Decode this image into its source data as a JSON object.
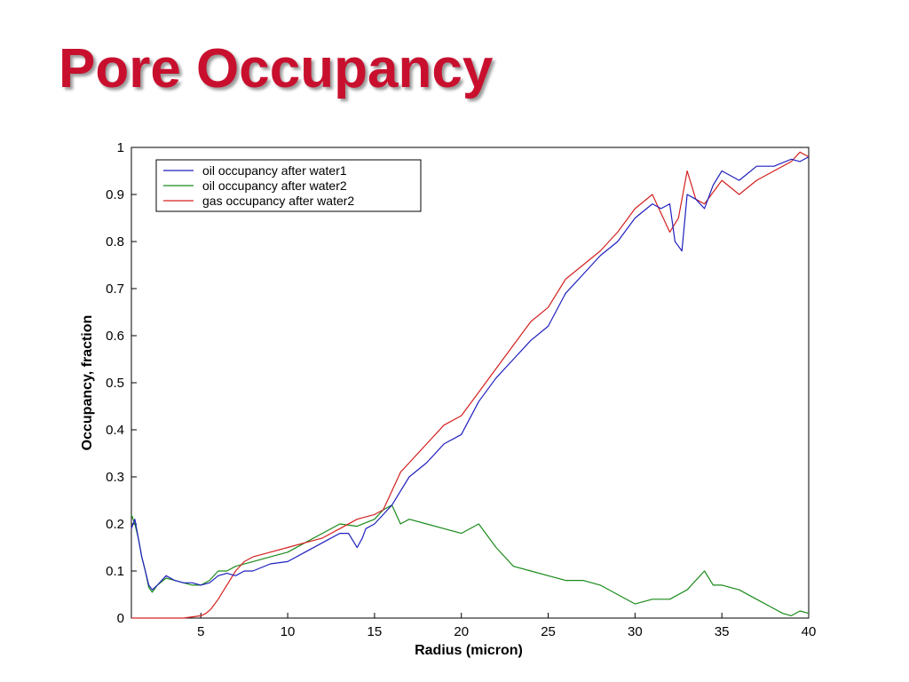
{
  "slide": {
    "title": "Pore Occupancy"
  },
  "chart_data": {
    "type": "line",
    "xlabel": "Radius (micron)",
    "ylabel": "Occupancy, fraction",
    "xlim": [
      1,
      40
    ],
    "ylim": [
      0,
      1
    ],
    "xticks": [
      5,
      10,
      15,
      20,
      25,
      30,
      35,
      40
    ],
    "yticks": [
      0,
      0.1,
      0.2,
      0.3,
      0.4,
      0.5,
      0.6,
      0.7,
      0.8,
      0.9,
      1
    ],
    "grid": false,
    "legend_position": "top-left",
    "series": [
      {
        "name": "oil occupancy after water1",
        "color": "#1f1fbf",
        "x": [
          1,
          1.2,
          1.4,
          1.6,
          1.8,
          2,
          2.2,
          2.5,
          3,
          3.5,
          4,
          4.5,
          5,
          5.5,
          6,
          6.5,
          7,
          7.5,
          8,
          9,
          10,
          11,
          12,
          13,
          13.5,
          14,
          14.3,
          14.5,
          15,
          15.5,
          16,
          16.5,
          17,
          18,
          19,
          20,
          21,
          22,
          23,
          24,
          25,
          26,
          27,
          28,
          29,
          30,
          31,
          31.5,
          32,
          32.3,
          32.7,
          33,
          33.5,
          34,
          34.5,
          35,
          36,
          37,
          38,
          39,
          39.5,
          40
        ],
        "y": [
          0.19,
          0.21,
          0.17,
          0.13,
          0.1,
          0.07,
          0.06,
          0.07,
          0.09,
          0.08,
          0.075,
          0.075,
          0.07,
          0.075,
          0.09,
          0.095,
          0.09,
          0.1,
          0.1,
          0.115,
          0.12,
          0.14,
          0.16,
          0.18,
          0.18,
          0.15,
          0.17,
          0.19,
          0.2,
          0.22,
          0.24,
          0.27,
          0.3,
          0.33,
          0.37,
          0.39,
          0.46,
          0.51,
          0.55,
          0.59,
          0.62,
          0.69,
          0.73,
          0.77,
          0.8,
          0.85,
          0.88,
          0.87,
          0.88,
          0.8,
          0.78,
          0.9,
          0.89,
          0.87,
          0.92,
          0.95,
          0.93,
          0.96,
          0.96,
          0.975,
          0.97,
          0.98
        ]
      },
      {
        "name": "oil occupancy after water2",
        "color": "#1a8a1a",
        "x": [
          1,
          1.2,
          1.4,
          1.6,
          1.8,
          2,
          2.2,
          2.5,
          3,
          3.5,
          4,
          4.5,
          5,
          5.5,
          6,
          6.5,
          7,
          8,
          9,
          10,
          11,
          12,
          13,
          14,
          15,
          15.5,
          16,
          16.5,
          17,
          18,
          19,
          20,
          21,
          22,
          23,
          24,
          25,
          26,
          27,
          28,
          29,
          30,
          31,
          32,
          33,
          34,
          34.5,
          35,
          36,
          37,
          38,
          38.5,
          39,
          39.5,
          40
        ],
        "y": [
          0.22,
          0.2,
          0.17,
          0.13,
          0.1,
          0.065,
          0.055,
          0.07,
          0.085,
          0.08,
          0.075,
          0.07,
          0.07,
          0.08,
          0.1,
          0.1,
          0.11,
          0.12,
          0.13,
          0.14,
          0.16,
          0.18,
          0.2,
          0.195,
          0.21,
          0.23,
          0.24,
          0.2,
          0.21,
          0.2,
          0.19,
          0.18,
          0.2,
          0.15,
          0.11,
          0.1,
          0.09,
          0.08,
          0.08,
          0.07,
          0.05,
          0.03,
          0.04,
          0.04,
          0.06,
          0.1,
          0.07,
          0.07,
          0.06,
          0.04,
          0.02,
          0.01,
          0.005,
          0.015,
          0.01
        ]
      },
      {
        "name": "gas occupancy after water2",
        "color": "#d42020",
        "x": [
          1,
          2,
          3,
          4,
          5,
          5.3,
          5.6,
          6,
          6.5,
          7,
          7.5,
          8,
          9,
          10,
          11,
          12,
          13,
          14,
          15,
          15.5,
          16,
          16.5,
          17,
          18,
          19,
          20,
          21,
          22,
          23,
          24,
          25,
          26,
          27,
          28,
          29,
          30,
          31,
          31.5,
          32,
          32.5,
          33,
          33.5,
          34,
          35,
          36,
          37,
          38,
          39,
          39.5,
          40
        ],
        "y": [
          0,
          0,
          0,
          0,
          0.005,
          0.01,
          0.02,
          0.04,
          0.07,
          0.1,
          0.12,
          0.13,
          0.14,
          0.15,
          0.16,
          0.17,
          0.19,
          0.21,
          0.22,
          0.23,
          0.27,
          0.31,
          0.33,
          0.37,
          0.41,
          0.43,
          0.48,
          0.53,
          0.58,
          0.63,
          0.66,
          0.72,
          0.75,
          0.78,
          0.82,
          0.87,
          0.9,
          0.86,
          0.82,
          0.85,
          0.95,
          0.89,
          0.88,
          0.93,
          0.9,
          0.93,
          0.95,
          0.97,
          0.99,
          0.98
        ]
      }
    ]
  }
}
